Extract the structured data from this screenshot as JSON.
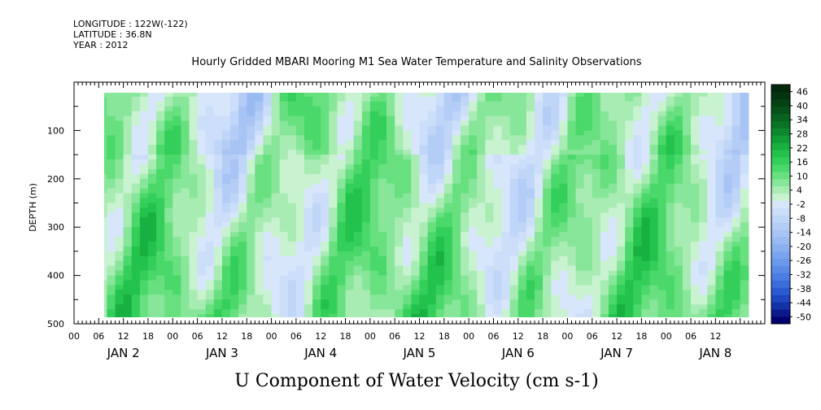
{
  "header": {
    "longitude": "LONGITUDE : 122W(-122)",
    "latitude": "LATITUDE : 36.8N",
    "year": "YEAR : 2012"
  },
  "chart_data": {
    "type": "heatmap",
    "title": "Hourly Gridded MBARI Mooring M1 Sea Water Temperature and Salinity Observations",
    "xlabel": "U Component of Water Velocity (cm s-1)",
    "ylabel": "DEPTH (m)",
    "ylim": [
      500,
      0
    ],
    "yticks": [
      "100",
      "200",
      "300",
      "400",
      "500"
    ],
    "hour_ticks": [
      "00",
      "06",
      "12",
      "18",
      "00",
      "06",
      "12",
      "18",
      "00",
      "06",
      "12",
      "18",
      "00",
      "06",
      "12",
      "18",
      "00",
      "06",
      "12",
      "18",
      "00",
      "06",
      "12",
      "18",
      "00",
      "06",
      "12"
    ],
    "day_labels": [
      "JAN  2",
      "JAN  3",
      "JAN  4",
      "JAN  5",
      "JAN  6",
      "JAN  7",
      "JAN  8"
    ],
    "colorbar": {
      "labels": [
        "46",
        "40",
        "34",
        "28",
        "22",
        "16",
        "10",
        "4",
        "-2",
        "-8",
        "-14",
        "-20",
        "-26",
        "-32",
        "-38",
        "-44",
        "-50"
      ],
      "levels": [
        -50,
        -47,
        -44,
        -41,
        -38,
        -35,
        -32,
        -29,
        -26,
        -23,
        -20,
        -17,
        -14,
        -11,
        -8,
        -5,
        -2,
        1,
        4,
        7,
        10,
        13,
        16,
        19,
        22,
        25,
        28,
        31,
        34,
        37,
        40,
        43,
        46,
        49
      ],
      "colors": [
        "#00006e",
        "#0a1a8c",
        "#1432a8",
        "#1e46c0",
        "#2a5ad2",
        "#3a6cdc",
        "#4a7ce2",
        "#5a8ae6",
        "#6a98ea",
        "#7aa4ee",
        "#8ab0f0",
        "#9abaf2",
        "#a8c4f4",
        "#b4cdf6",
        "#c0d6f8",
        "#ccdef9",
        "#d8e6fb",
        "#c8f2d0",
        "#a8ecb4",
        "#88e69a",
        "#68e080",
        "#4ad86a",
        "#34ce5a",
        "#22c24c",
        "#18b040",
        "#129c36",
        "#0e882e",
        "#0a7426",
        "#086220",
        "#06521a",
        "#044214",
        "#033410",
        "#02280c"
      ]
    }
  }
}
